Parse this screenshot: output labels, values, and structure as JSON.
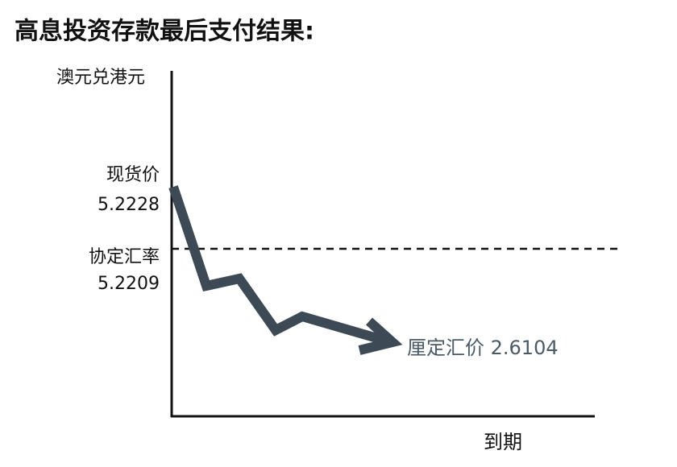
{
  "title": "高息投资存款最后支付结果:",
  "y_axis_label": "澳元兑港元",
  "x_axis_label": "到期",
  "spot": {
    "label": "现货价",
    "value": "5.2228"
  },
  "strike": {
    "label": "协定汇率",
    "value": "5.2209"
  },
  "fixing": {
    "label": "厘定汇价 2.6104"
  }
}
